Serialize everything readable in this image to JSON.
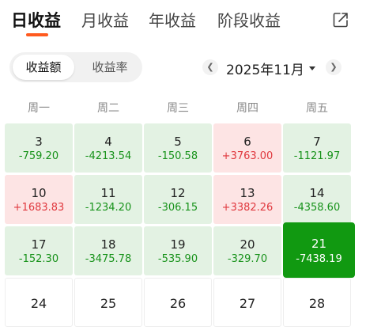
{
  "tabs": [
    {
      "label": "日收益"
    },
    {
      "label": "月收益"
    },
    {
      "label": "年收益"
    },
    {
      "label": "阶段收益"
    }
  ],
  "toggle": {
    "options": [
      "收益额",
      "收益率"
    ],
    "selected": "收益额"
  },
  "month": {
    "label": "2025年11月",
    "prev_icon": "chevron-left-icon",
    "next_icon": "chevron-right-icon",
    "dropdown_icon": "caret-down-icon"
  },
  "weekdays": [
    "周一",
    "周二",
    "周三",
    "周四",
    "周五"
  ],
  "days": [
    {
      "day": "3",
      "value": "-759.20"
    },
    {
      "day": "4",
      "value": "-4213.54"
    },
    {
      "day": "5",
      "value": "-150.58"
    },
    {
      "day": "6",
      "value": "+3763.00"
    },
    {
      "day": "7",
      "value": "-1121.97"
    },
    {
      "day": "10",
      "value": "+1683.83"
    },
    {
      "day": "11",
      "value": "-1234.20"
    },
    {
      "day": "12",
      "value": "-306.15"
    },
    {
      "day": "13",
      "value": "+3382.26"
    },
    {
      "day": "14",
      "value": "-4358.60"
    },
    {
      "day": "17",
      "value": "-152.30"
    },
    {
      "day": "18",
      "value": "-3475.78"
    },
    {
      "day": "19",
      "value": "-535.90"
    },
    {
      "day": "20",
      "value": "-329.70"
    },
    {
      "day": "21",
      "value": "-7438.19"
    },
    {
      "day": "24",
      "value": ""
    },
    {
      "day": "25",
      "value": ""
    },
    {
      "day": "26",
      "value": ""
    },
    {
      "day": "27",
      "value": ""
    },
    {
      "day": "28",
      "value": ""
    }
  ],
  "colors": {
    "accent": "#ff5a1f",
    "loss_bg": "#e3f2e3",
    "loss_text": "#17921a",
    "gain_bg": "#fde4e4",
    "gain_text": "#e0383e",
    "selected_bg": "#119911"
  }
}
